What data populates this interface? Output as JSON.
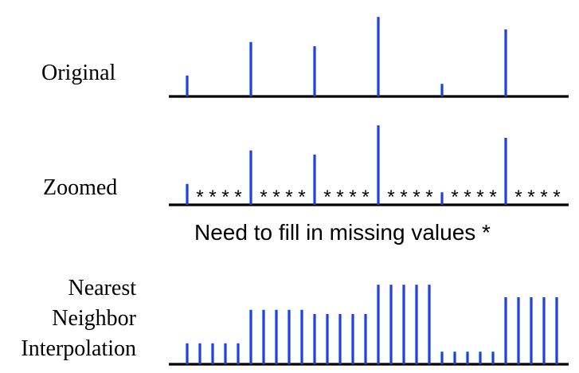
{
  "labels": {
    "original": "Original",
    "zoomed": "Zoomed",
    "nearest_lines": [
      "Nearest",
      "Neighbor",
      "Interpolation"
    ],
    "note": "Need to fill in missing values *"
  },
  "missing_symbol": "*",
  "colors": {
    "stem": "#1a3fe8",
    "axis": "#000000",
    "background": "#ffffff"
  },
  "original_values": [
    2.5,
    6.5,
    6.0,
    9.5,
    1.5,
    8.0
  ],
  "zoom_factor": 5
}
